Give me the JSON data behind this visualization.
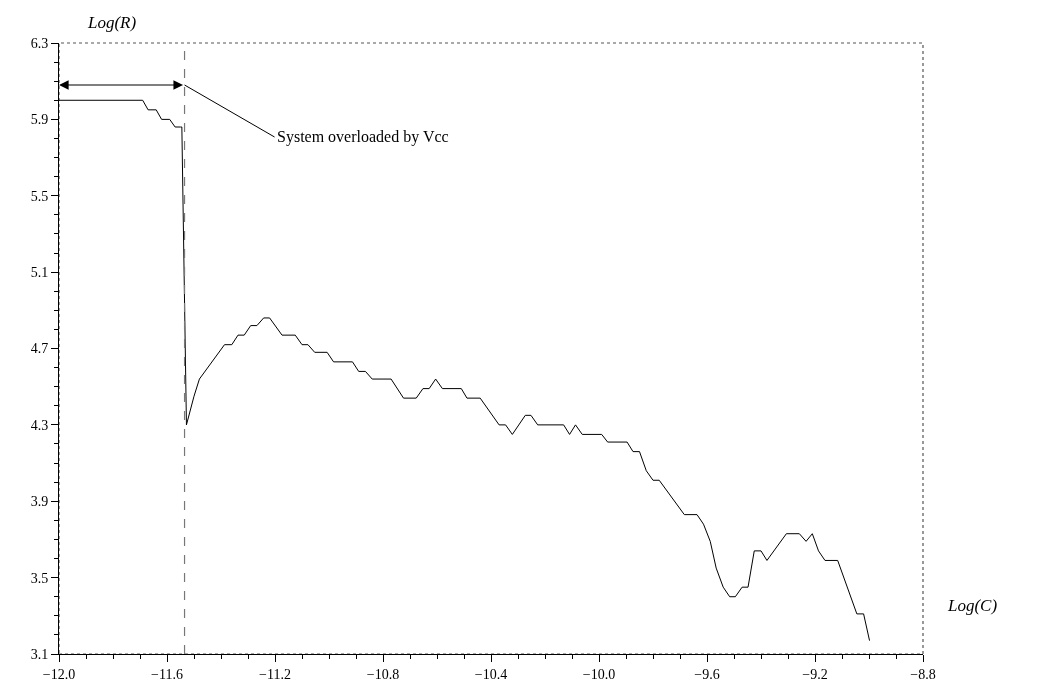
{
  "chart_data": {
    "type": "line",
    "xlabel": "Log(C)",
    "ylabel": "Log(R)",
    "xlim": [
      -12.0,
      -8.8
    ],
    "xticks": [
      {
        "value": -12.0,
        "label": "−12.0"
      },
      {
        "value": -11.6,
        "label": "−11.6"
      },
      {
        "value": -11.2,
        "label": "−11.2"
      },
      {
        "value": -10.8,
        "label": "−10.8"
      },
      {
        "value": -10.4,
        "label": "−10.4"
      },
      {
        "value": -10.0,
        "label": "−10.0"
      },
      {
        "value": -9.6,
        "label": "−9.6"
      },
      {
        "value": -9.2,
        "label": "−9.2"
      },
      {
        "value": -8.8,
        "label": "−8.8"
      }
    ],
    "ylim": [
      3.1,
      6.3
    ],
    "yticks": [
      {
        "value": 3.1,
        "label": "3.1"
      },
      {
        "value": 3.5,
        "label": "3.5"
      },
      {
        "value": 3.9,
        "label": "3.9"
      },
      {
        "value": 4.3,
        "label": "4.3"
      },
      {
        "value": 4.7,
        "label": "4.7"
      },
      {
        "value": 5.1,
        "label": "5.1"
      },
      {
        "value": 5.5,
        "label": "5.5"
      },
      {
        "value": 5.9,
        "label": "5.9"
      },
      {
        "value": 6.3,
        "label": "6.3"
      }
    ],
    "grid": false,
    "marker": "none",
    "line_style": "solid",
    "x": [
      -12.0,
      -11.69,
      -11.67,
      -11.64,
      -11.62,
      -11.59,
      -11.57,
      -11.55,
      -11.545,
      -11.528,
      -11.5,
      -11.48,
      -11.387,
      -11.36,
      -11.337,
      -11.314,
      -11.29,
      -11.267,
      -11.242,
      -11.22,
      -11.174,
      -11.125,
      -11.1,
      -11.078,
      -11.053,
      -11.007,
      -10.983,
      -10.913,
      -10.89,
      -10.865,
      -10.84,
      -10.77,
      -10.724,
      -10.677,
      -10.652,
      -10.629,
      -10.605,
      -10.58,
      -10.51,
      -10.489,
      -10.44,
      -10.37,
      -10.346,
      -10.321,
      -10.273,
      -10.252,
      -10.227,
      -10.131,
      -10.109,
      -10.087,
      -10.062,
      -9.99,
      -9.968,
      -9.896,
      -9.874,
      -9.85,
      -9.825,
      -9.8,
      -9.777,
      -9.684,
      -9.637,
      -9.613,
      -9.588,
      -9.566,
      -9.54,
      -9.516,
      -9.495,
      -9.47,
      -9.448,
      -9.425,
      -9.4,
      -9.378,
      -9.306,
      -9.258,
      -9.233,
      -9.21,
      -9.187,
      -9.163,
      -9.116,
      -9.045,
      -9.02,
      -8.998
    ],
    "series": [
      {
        "color": "#000000",
        "values": [
          6.0,
          6.0,
          5.95,
          5.95,
          5.9,
          5.9,
          5.86,
          5.86,
          5.86,
          4.3,
          4.45,
          4.54,
          4.72,
          4.72,
          4.77,
          4.77,
          4.82,
          4.82,
          4.86,
          4.86,
          4.77,
          4.77,
          4.72,
          4.72,
          4.68,
          4.68,
          4.63,
          4.63,
          4.58,
          4.58,
          4.54,
          4.54,
          4.44,
          4.44,
          4.49,
          4.49,
          4.54,
          4.49,
          4.49,
          4.44,
          4.44,
          4.3,
          4.3,
          4.25,
          4.35,
          4.35,
          4.3,
          4.3,
          4.25,
          4.3,
          4.25,
          4.25,
          4.21,
          4.21,
          4.16,
          4.16,
          4.06,
          4.01,
          4.01,
          3.83,
          3.83,
          3.78,
          3.69,
          3.55,
          3.45,
          3.4,
          3.4,
          3.45,
          3.45,
          3.64,
          3.64,
          3.59,
          3.73,
          3.73,
          3.69,
          3.73,
          3.64,
          3.59,
          3.59,
          3.31,
          3.31,
          3.17
        ]
      }
    ],
    "ref_lines": [
      {
        "axis": "x",
        "value": -11.535,
        "line_style": "dashed",
        "color": "#777777"
      }
    ],
    "annotations": [
      {
        "text": "System overloaded by Vcc",
        "x": -11.535,
        "y": 6.08
      }
    ]
  }
}
